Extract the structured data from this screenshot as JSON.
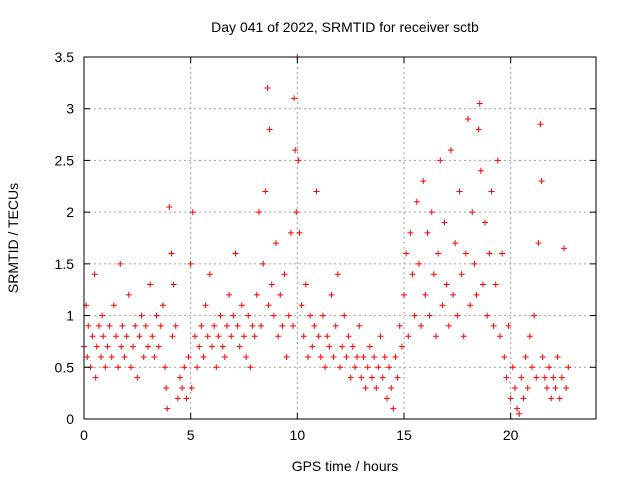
{
  "chart_data": {
    "type": "scatter",
    "title": "Day 041 of 2022, SRMTID for receiver sctb",
    "xlabel": "GPS time / hours",
    "ylabel": "SRMTID / TECUs",
    "xlim": [
      0,
      24
    ],
    "ylim": [
      0,
      3.5
    ],
    "xticks": [
      0,
      5,
      10,
      15,
      20
    ],
    "xtick_labels": [
      "0",
      "5",
      "10",
      "15",
      "20"
    ],
    "yticks": [
      0,
      0.5,
      1,
      1.5,
      2,
      2.5,
      3,
      3.5
    ],
    "ytick_labels": [
      "0",
      "0.5",
      "1",
      "1.5",
      "2",
      "2.5",
      "3",
      "3.5"
    ],
    "grid": true,
    "marker": "+",
    "color": "#ff0000",
    "series": [
      {
        "name": "SRMTID",
        "x": [
          0.0,
          0.1,
          0.15,
          0.2,
          0.3,
          0.4,
          0.5,
          0.55,
          0.6,
          0.7,
          0.8,
          0.85,
          0.9,
          1.0,
          1.1,
          1.2,
          1.3,
          1.4,
          1.5,
          1.6,
          1.7,
          1.75,
          1.8,
          1.9,
          2.0,
          2.1,
          2.2,
          2.3,
          2.4,
          2.5,
          2.6,
          2.7,
          2.8,
          2.9,
          3.0,
          3.1,
          3.2,
          3.3,
          3.4,
          3.5,
          3.6,
          3.7,
          3.8,
          3.85,
          3.9,
          4.0,
          4.1,
          4.15,
          4.2,
          4.3,
          4.4,
          4.5,
          4.6,
          4.7,
          4.8,
          4.9,
          5.0,
          5.05,
          5.1,
          5.2,
          5.3,
          5.4,
          5.5,
          5.6,
          5.7,
          5.8,
          5.9,
          6.0,
          6.1,
          6.2,
          6.3,
          6.4,
          6.5,
          6.6,
          6.7,
          6.8,
          6.9,
          7.0,
          7.1,
          7.2,
          7.3,
          7.4,
          7.5,
          7.6,
          7.7,
          7.8,
          7.9,
          8.0,
          8.1,
          8.2,
          8.3,
          8.4,
          8.5,
          8.6,
          8.65,
          8.7,
          8.8,
          8.9,
          9.0,
          9.1,
          9.2,
          9.3,
          9.4,
          9.5,
          9.6,
          9.7,
          9.8,
          9.85,
          9.9,
          9.95,
          10.0,
          10.05,
          10.1,
          10.2,
          10.3,
          10.4,
          10.5,
          10.6,
          10.7,
          10.8,
          10.9,
          11.0,
          11.1,
          11.2,
          11.3,
          11.4,
          11.5,
          11.6,
          11.7,
          11.8,
          11.9,
          12.0,
          12.1,
          12.2,
          12.3,
          12.4,
          12.5,
          12.6,
          12.7,
          12.8,
          12.9,
          13.0,
          13.1,
          13.2,
          13.3,
          13.4,
          13.5,
          13.6,
          13.7,
          13.8,
          13.9,
          14.0,
          14.1,
          14.2,
          14.3,
          14.4,
          14.5,
          14.6,
          14.7,
          14.8,
          14.9,
          15.0,
          15.1,
          15.2,
          15.3,
          15.4,
          15.5,
          15.6,
          15.7,
          15.8,
          15.9,
          16.0,
          16.1,
          16.2,
          16.3,
          16.4,
          16.5,
          16.6,
          16.7,
          16.8,
          16.9,
          17.0,
          17.1,
          17.2,
          17.3,
          17.4,
          17.5,
          17.6,
          17.7,
          17.8,
          17.9,
          18.0,
          18.1,
          18.2,
          18.3,
          18.4,
          18.5,
          18.55,
          18.6,
          18.7,
          18.8,
          18.9,
          19.0,
          19.1,
          19.2,
          19.3,
          19.4,
          19.5,
          19.6,
          19.7,
          19.8,
          19.9,
          20.0,
          20.1,
          20.2,
          20.3,
          20.4,
          20.5,
          20.6,
          20.7,
          20.8,
          20.9,
          21.0,
          21.1,
          21.2,
          21.3,
          21.4,
          21.45,
          21.5,
          21.6,
          21.7,
          21.8,
          21.9,
          22.0,
          22.1,
          22.2,
          22.3,
          22.4,
          22.5,
          22.6,
          22.7
        ],
        "y": [
          0.7,
          1.1,
          0.6,
          0.9,
          0.5,
          0.8,
          1.4,
          0.4,
          0.7,
          0.9,
          0.6,
          1.0,
          0.8,
          0.5,
          0.7,
          0.9,
          0.6,
          1.1,
          0.8,
          0.5,
          1.5,
          0.7,
          0.9,
          0.6,
          0.8,
          1.2,
          0.5,
          0.7,
          0.9,
          0.4,
          0.8,
          1.0,
          0.6,
          0.9,
          0.7,
          1.3,
          0.8,
          0.6,
          1.0,
          0.7,
          0.9,
          1.1,
          0.5,
          0.3,
          0.1,
          2.05,
          1.6,
          0.8,
          1.3,
          0.9,
          0.2,
          0.4,
          0.3,
          0.5,
          0.2,
          0.6,
          1.5,
          0.3,
          2.0,
          0.8,
          0.5,
          0.7,
          0.9,
          0.6,
          1.1,
          0.8,
          1.4,
          0.7,
          0.9,
          0.5,
          0.8,
          1.0,
          0.7,
          0.6,
          0.9,
          1.2,
          0.8,
          1.0,
          1.6,
          0.9,
          0.7,
          1.1,
          0.8,
          0.6,
          1.0,
          0.5,
          0.9,
          0.8,
          1.2,
          2.0,
          0.9,
          1.5,
          2.2,
          3.2,
          1.1,
          2.8,
          1.3,
          1.0,
          1.7,
          0.8,
          1.2,
          0.9,
          1.4,
          0.6,
          1.0,
          1.8,
          0.9,
          3.1,
          2.6,
          2.0,
          3.5,
          2.5,
          1.8,
          1.1,
          0.8,
          1.3,
          0.6,
          1.0,
          0.7,
          0.9,
          2.2,
          0.8,
          0.6,
          1.0,
          0.5,
          0.8,
          0.7,
          1.2,
          0.6,
          0.9,
          1.4,
          0.5,
          0.7,
          1.0,
          0.6,
          0.8,
          0.4,
          0.7,
          0.5,
          0.6,
          0.9,
          0.4,
          0.6,
          0.3,
          0.5,
          0.7,
          0.4,
          0.6,
          0.3,
          0.5,
          0.8,
          0.4,
          0.6,
          0.2,
          0.5,
          0.3,
          0.1,
          0.6,
          0.4,
          0.9,
          0.7,
          1.2,
          1.6,
          0.8,
          1.8,
          1.4,
          1.0,
          2.1,
          1.5,
          0.9,
          2.3,
          1.2,
          1.8,
          1.0,
          2.0,
          1.4,
          0.8,
          1.6,
          2.5,
          1.1,
          1.9,
          1.3,
          0.9,
          2.6,
          1.2,
          1.7,
          1.0,
          2.2,
          1.4,
          0.8,
          1.6,
          2.9,
          1.1,
          2.0,
          1.5,
          1.2,
          2.8,
          3.05,
          2.4,
          1.3,
          1.9,
          1.0,
          1.6,
          2.2,
          0.9,
          1.3,
          2.5,
          0.8,
          1.6,
          0.6,
          0.4,
          0.9,
          0.2,
          0.5,
          0.3,
          0.1,
          0.05,
          0.4,
          0.2,
          0.6,
          0.3,
          0.8,
          0.5,
          1.0,
          0.4,
          1.7,
          2.85,
          2.3,
          0.6,
          0.4,
          0.3,
          0.5,
          0.2,
          0.4,
          0.3,
          0.6,
          0.2,
          0.4,
          1.65,
          0.3,
          0.5
        ]
      }
    ]
  }
}
